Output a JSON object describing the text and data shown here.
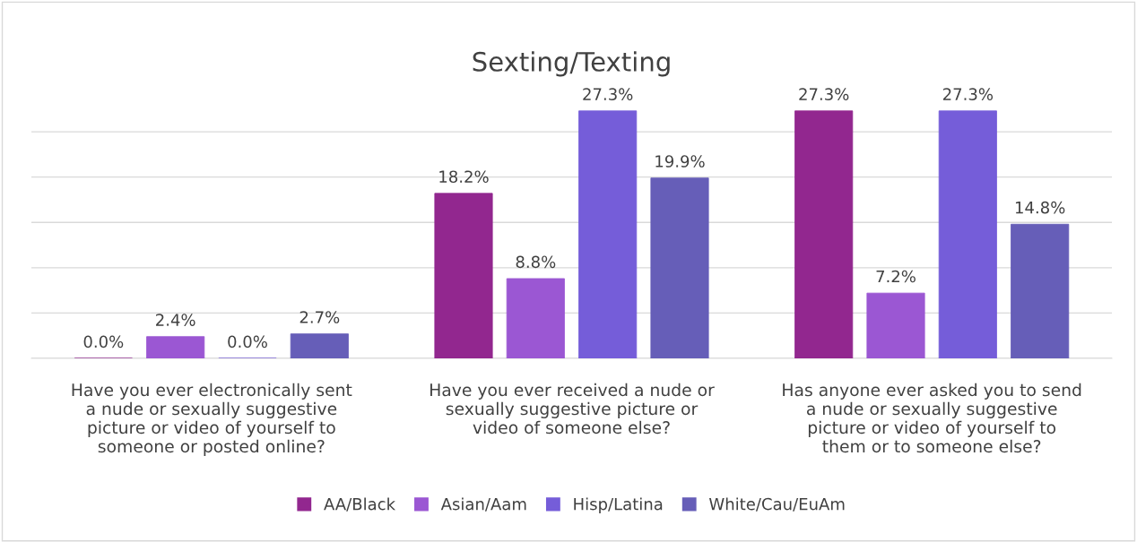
{
  "chart_data": {
    "type": "bar",
    "title": "Sexting/Texting",
    "categories": [
      "Have you ever electronically sent a nude or sexually suggestive picture or video of yourself to someone or posted online?",
      "Have you ever received a nude or sexually suggestive picture or video of someone else?",
      "Has anyone ever asked you to send a nude or sexually suggestive picture or video of yourself to them or to someone else?"
    ],
    "series": [
      {
        "name": "AA/Black",
        "color": "#92278f",
        "values": [
          0.0,
          18.2,
          27.3
        ],
        "value_labels": [
          "0.0%",
          "18.2%",
          "27.3%"
        ]
      },
      {
        "name": "Asian/Aam",
        "color": "#9b57d3",
        "values": [
          2.4,
          8.8,
          7.2
        ],
        "value_labels": [
          "2.4%",
          "8.8%",
          "7.2%"
        ]
      },
      {
        "name": "Hisp/Latina",
        "color": "#755dd9",
        "values": [
          0.0,
          27.3,
          27.3
        ],
        "value_labels": [
          "0.0%",
          "27.3%",
          "27.3%"
        ]
      },
      {
        "name": "White/Cau/EuAm",
        "color": "#665eb8",
        "values": [
          2.7,
          19.9,
          14.8
        ],
        "value_labels": [
          "2.7%",
          "19.9%",
          "14.8%"
        ]
      }
    ],
    "tick_labels": "x",
    "grid": "y",
    "legend": "bottom"
  }
}
